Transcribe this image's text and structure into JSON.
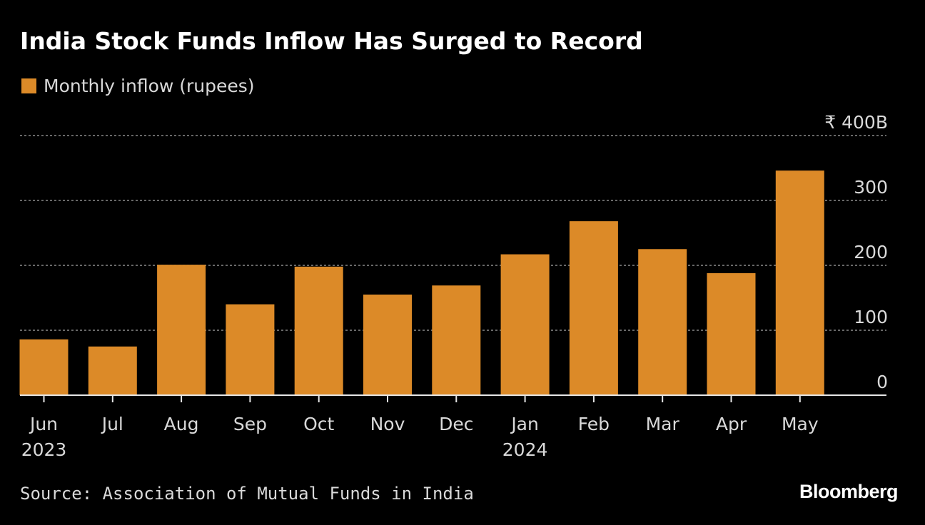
{
  "title": "India Stock Funds Inflow Has Surged to Record",
  "legend": {
    "label": "Monthly inflow (rupees)",
    "color": "#dc8a28"
  },
  "source": "Source: Association of Mutual Funds in India",
  "brand": "Bloomberg",
  "chart_data": {
    "type": "bar",
    "title": "India Stock Funds Inflow Has Surged to Record",
    "categories": [
      "Jun",
      "Jul",
      "Aug",
      "Sep",
      "Oct",
      "Nov",
      "Dec",
      "Jan",
      "Feb",
      "Mar",
      "Apr",
      "May"
    ],
    "category_years": [
      "2023",
      "",
      "",
      "",
      "",
      "",
      "",
      "2024",
      "",
      "",
      "",
      ""
    ],
    "series": [
      {
        "name": "Monthly inflow (rupees)",
        "color": "#dc8a28",
        "values": [
          86,
          75,
          201,
          140,
          198,
          155,
          169,
          217,
          268,
          225,
          188,
          346
        ]
      }
    ],
    "y_ticks": [
      {
        "value": 0,
        "label": "0"
      },
      {
        "value": 100,
        "label": "100"
      },
      {
        "value": 200,
        "label": "200"
      },
      {
        "value": 300,
        "label": "300"
      },
      {
        "value": 400,
        "label": "₹ 400B"
      }
    ],
    "ylim": [
      0,
      400
    ],
    "grid": true,
    "grid_style": "dotted",
    "y_axis_side": "right",
    "legend_position": "top-left"
  }
}
